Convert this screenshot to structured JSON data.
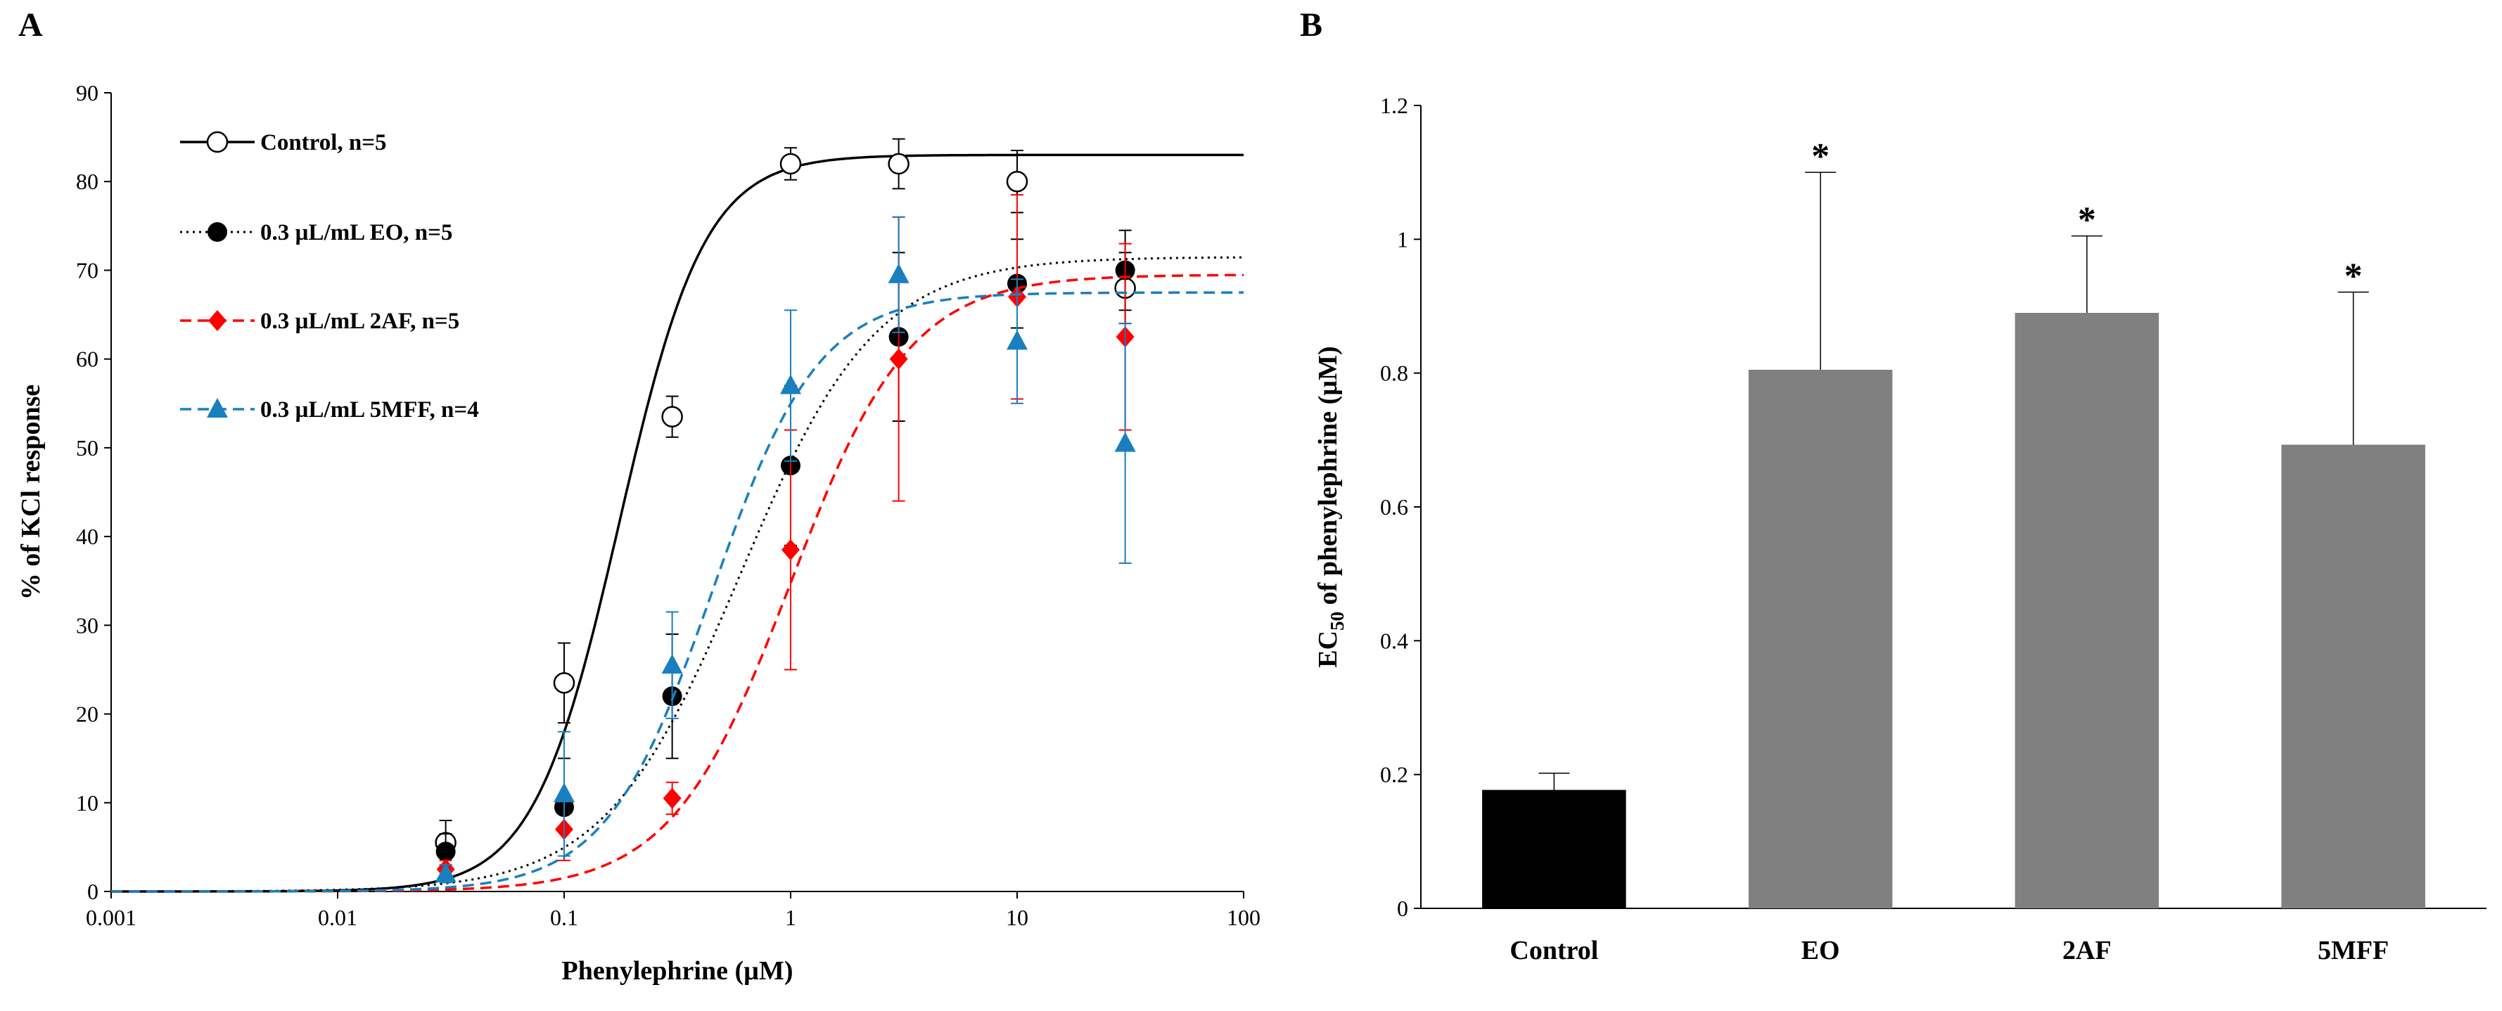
{
  "panels": {
    "a": "A",
    "b": "B"
  },
  "chart_data": [
    {
      "id": "A",
      "type": "line",
      "xscale": "log",
      "xlim": [
        0.001,
        100
      ],
      "ylim": [
        0,
        90
      ],
      "xticks": [
        0.001,
        0.01,
        0.1,
        1,
        10,
        100
      ],
      "xtick_labels": [
        "0.001",
        "0.01",
        "0.1",
        "1",
        "10",
        "100"
      ],
      "yticks": [
        0,
        10,
        20,
        30,
        40,
        50,
        60,
        70,
        80,
        90
      ],
      "xlabel": "Phenylephrine (µM)",
      "ylabel": "% of KCl response",
      "legend_position": "top-left",
      "series": [
        {
          "name": "Control, n=5",
          "color": "#000000",
          "marker": "open-circle",
          "line": "solid",
          "x": [
            0.03,
            0.1,
            0.3,
            1,
            3,
            10,
            30
          ],
          "y": [
            5.5,
            23.5,
            53.5,
            82,
            82,
            80,
            68
          ],
          "err": [
            2.5,
            4.5,
            2.3,
            1.8,
            2.8,
            3.5,
            4
          ],
          "fit": {
            "top": 83,
            "ec50": 0.175,
            "hill": 2.3
          }
        },
        {
          "name": "0.3 µL/mL EO, n=5",
          "color": "#000000",
          "marker": "filled-circle",
          "line": "dotted",
          "x": [
            0.03,
            0.1,
            0.3,
            1,
            3,
            10,
            30
          ],
          "y": [
            4.5,
            9.5,
            22,
            48,
            62.5,
            68.5,
            70
          ],
          "err": [
            2,
            5.5,
            7,
            9,
            9.5,
            5,
            4.5
          ],
          "fit": {
            "top": 71.5,
            "ec50": 0.6,
            "hill": 1.45
          }
        },
        {
          "name": "0.3 µL/mL 2AF, n=5",
          "color": "#ff0000",
          "marker": "diamond",
          "line": "dashed",
          "x": [
            0.03,
            0.1,
            0.3,
            1,
            3,
            10,
            30
          ],
          "y": [
            2.5,
            7,
            10.5,
            38.5,
            60,
            67,
            62.5
          ],
          "err": [
            1,
            3.5,
            1.8,
            13.5,
            16,
            11.5,
            10.5
          ],
          "fit": {
            "top": 69.5,
            "ec50": 1.0,
            "hill": 1.65
          }
        },
        {
          "name": "0.3 µL/mL 5MFF, n=4",
          "color": "#1a7fbf",
          "marker": "triangle",
          "line": "dashed",
          "x": [
            0.03,
            0.1,
            0.3,
            1,
            3,
            10,
            30
          ],
          "y": [
            2,
            11,
            25.5,
            57,
            69.5,
            62,
            50.5
          ],
          "err": [
            1,
            7,
            6,
            8.5,
            6.5,
            7,
            13.5
          ],
          "fit": {
            "top": 67.5,
            "ec50": 0.45,
            "hill": 1.85
          }
        }
      ]
    },
    {
      "id": "B",
      "type": "bar",
      "categories": [
        "Control",
        "EO",
        "2AF",
        "5MFF"
      ],
      "values": [
        0.177,
        0.805,
        0.89,
        0.693
      ],
      "errors": [
        0.025,
        0.295,
        0.115,
        0.228
      ],
      "significance": [
        "",
        "*",
        "*",
        "*"
      ],
      "colors": [
        "#000000",
        "#808080",
        "#808080",
        "#808080"
      ],
      "ylim": [
        0,
        1.2
      ],
      "yticks": [
        0,
        0.2,
        0.4,
        0.6,
        0.8,
        1,
        1.2
      ],
      "ytick_labels": [
        "0",
        "0.2",
        "0.4",
        "0.6",
        "0.8",
        "1",
        "1.2"
      ],
      "ylabel_main": "EC",
      "ylabel_sub": "50",
      "ylabel_rest": " of phenylephrine (µM)",
      "xlabel": ""
    }
  ]
}
